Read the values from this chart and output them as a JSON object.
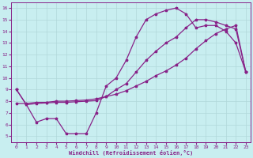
{
  "xlabel": "Windchill (Refroidissement éolien,°C)",
  "bg_color": "#c8eef0",
  "grid_color": "#b0d8da",
  "line_color": "#882288",
  "xlim": [
    -0.5,
    23.5
  ],
  "ylim": [
    4.5,
    16.5
  ],
  "xticks": [
    0,
    1,
    2,
    3,
    4,
    5,
    6,
    7,
    8,
    9,
    10,
    11,
    12,
    13,
    14,
    15,
    16,
    17,
    18,
    19,
    20,
    21,
    22,
    23
  ],
  "yticks": [
    5,
    6,
    7,
    8,
    9,
    10,
    11,
    12,
    13,
    14,
    15,
    16
  ],
  "series1_x": [
    0,
    1,
    2,
    3,
    4,
    5,
    6,
    7,
    8,
    9,
    10,
    11,
    12,
    13,
    14,
    15,
    16,
    17,
    18,
    19,
    20,
    21,
    22,
    23
  ],
  "series1_y": [
    9.0,
    7.7,
    6.2,
    6.5,
    6.5,
    5.2,
    5.2,
    5.2,
    7.0,
    9.3,
    10.0,
    11.5,
    13.5,
    15.0,
    15.5,
    15.8,
    16.0,
    15.5,
    14.3,
    14.5,
    14.5,
    14.0,
    13.0,
    10.5
  ],
  "series2_x": [
    0,
    1,
    2,
    3,
    4,
    5,
    6,
    7,
    8,
    9,
    10,
    11,
    12,
    13,
    14,
    15,
    16,
    17,
    18,
    19,
    20,
    21,
    22,
    23
  ],
  "series2_y": [
    7.8,
    7.8,
    7.9,
    7.9,
    8.0,
    8.0,
    8.05,
    8.1,
    8.2,
    8.4,
    8.6,
    8.9,
    9.3,
    9.7,
    10.2,
    10.6,
    11.1,
    11.7,
    12.5,
    13.2,
    13.8,
    14.2,
    14.5,
    10.5
  ],
  "series3_x": [
    0,
    1,
    2,
    3,
    4,
    5,
    6,
    7,
    8,
    9,
    10,
    11,
    12,
    13,
    14,
    15,
    16,
    17,
    18,
    19,
    20,
    21,
    22,
    23
  ],
  "series3_y": [
    9.0,
    7.7,
    7.8,
    7.85,
    7.9,
    7.9,
    7.95,
    8.0,
    8.05,
    8.4,
    9.0,
    9.5,
    10.5,
    11.5,
    12.3,
    13.0,
    13.5,
    14.3,
    15.0,
    15.0,
    14.8,
    14.5,
    14.2,
    10.5
  ]
}
